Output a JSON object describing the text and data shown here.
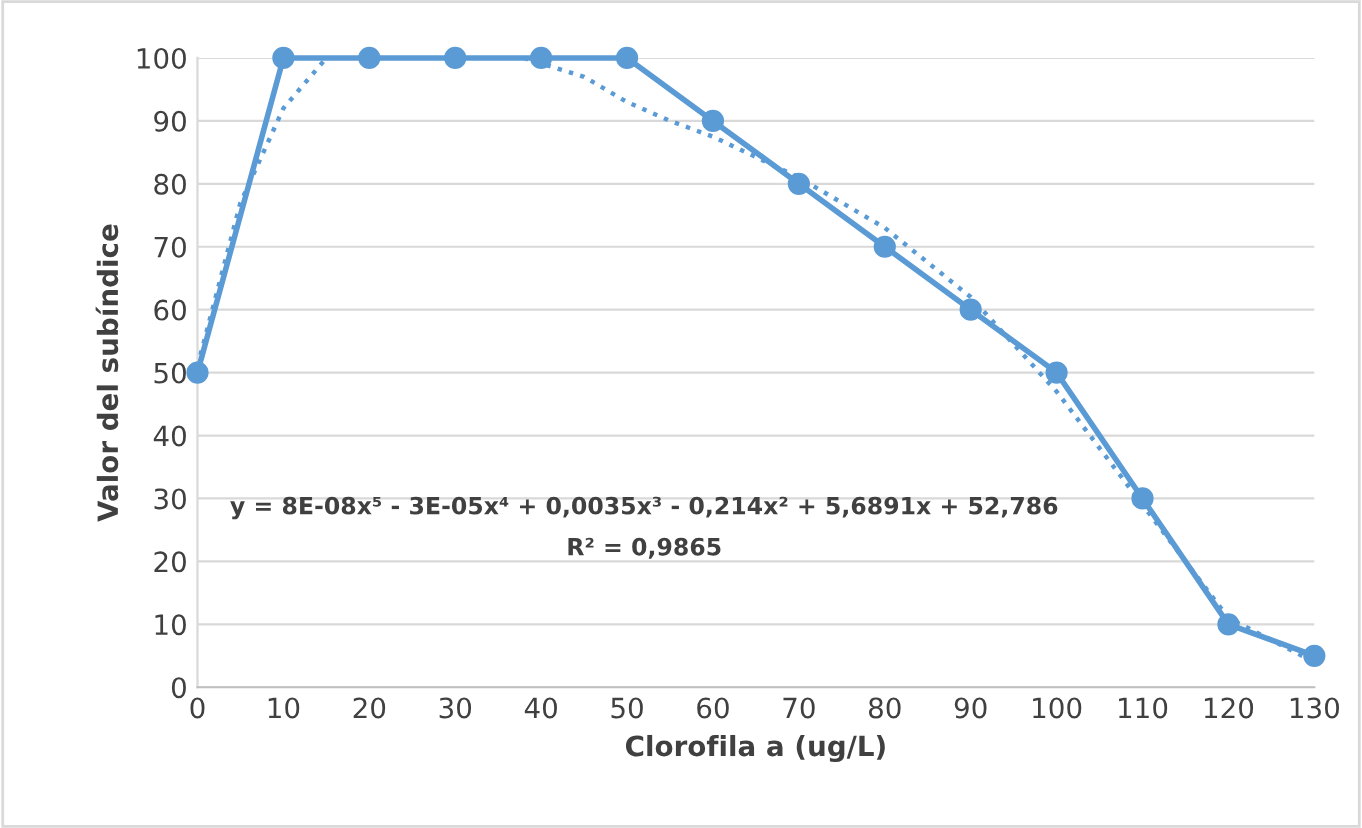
{
  "chart_data": {
    "type": "line",
    "xlabel": "Clorofila a (ug/L)",
    "ylabel": "Valor del subíndice",
    "x": [
      0,
      10,
      20,
      30,
      40,
      50,
      60,
      70,
      80,
      90,
      100,
      110,
      120,
      130
    ],
    "series": [
      {
        "color": "#5b9bd5",
        "values": [
          50,
          100,
          100,
          100,
          100,
          100,
          90,
          80,
          70,
          60,
          50,
          30,
          10,
          5
        ],
        "marker": "circle",
        "line_style": "solid"
      },
      {
        "type": "line",
        "color": "#5b9bd5",
        "x": [
          0,
          5,
          10,
          15,
          27,
          38,
          45,
          50,
          55,
          60,
          70,
          80,
          90,
          100,
          110,
          120,
          130
        ],
        "values": [
          51,
          77,
          92,
          100,
          null,
          100,
          97,
          93,
          90,
          87.5,
          81,
          73,
          62,
          47,
          29,
          11,
          4
        ],
        "marker": "none",
        "line_style": "dotted"
      }
    ],
    "xlim": [
      0,
      130
    ],
    "xticks": [
      0,
      10,
      20,
      30,
      40,
      50,
      60,
      70,
      80,
      90,
      100,
      110,
      120,
      130
    ],
    "ylim": [
      0,
      100
    ],
    "yticks": [
      0,
      10,
      20,
      30,
      40,
      50,
      60,
      70,
      80,
      90,
      100
    ],
    "grid": "y",
    "legend": false,
    "annotations": [
      "y = 8E-08x⁵ - 3E-05x⁴ + 0,0035x³ - 0,214x² + 5,6891x + 52,786",
      "R² = 0,9865"
    ]
  }
}
